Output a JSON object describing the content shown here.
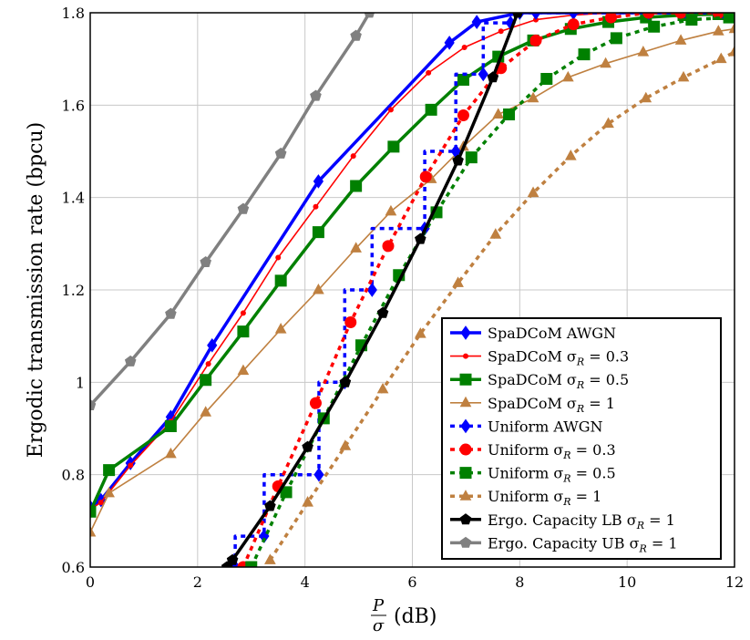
{
  "chart_data": {
    "type": "line",
    "title": "",
    "xlabel": {
      "numerator": "P",
      "denominator": "σ",
      "unit": "(dB)"
    },
    "ylabel": "Ergodic transmission rate (bpcu)",
    "xlim": [
      0,
      12
    ],
    "ylim": [
      0.6,
      1.8
    ],
    "xticks": [
      0,
      2,
      4,
      6,
      8,
      10,
      12
    ],
    "xtick_labels": [
      "0",
      "2",
      "4",
      "6",
      "8",
      "10",
      "12"
    ],
    "yticks": [
      0.6,
      0.8,
      1.0,
      1.2,
      1.4,
      1.6,
      1.8
    ],
    "ytick_labels": [
      "0.6",
      "0.8",
      "1",
      "1.2",
      "1.4",
      "1.6",
      "1.8"
    ],
    "grid": true,
    "legend_position": "bottom-right",
    "series": [
      {
        "name": "SpaDCoM AWGN",
        "prefix": "SpaDCoM AWGN",
        "sub": "",
        "suffix": "",
        "color": "#0000ff",
        "dash": false,
        "width": 3.5,
        "marker": "diamond",
        "x": [
          0,
          0.2,
          0.75,
          1.5,
          2.27,
          4.25,
          6.69,
          7.2,
          8,
          12
        ],
        "y": [
          0.73,
          0.745,
          0.825,
          0.925,
          1.08,
          1.435,
          1.735,
          1.78,
          1.8,
          1.8
        ]
      },
      {
        "name": "SpaDCoM σR = 0.3",
        "prefix": "SpaDCoM σ",
        "sub": "R",
        "suffix": " = 0.3",
        "color": "#ff0000",
        "dash": false,
        "width": 1.6,
        "marker": "dot",
        "x": [
          0,
          0.2,
          0.75,
          1.5,
          2.2,
          2.85,
          3.5,
          4.2,
          4.9,
          5.6,
          6.3,
          6.97,
          7.65,
          8.3,
          9,
          9.7,
          10.4,
          11,
          11.7,
          12
        ],
        "y": [
          0.725,
          0.74,
          0.82,
          0.915,
          1.04,
          1.15,
          1.27,
          1.38,
          1.49,
          1.59,
          1.67,
          1.725,
          1.76,
          1.785,
          1.795,
          1.8,
          1.8,
          1.8,
          1.8,
          1.8
        ]
      },
      {
        "name": "SpaDCoM σR = 0.5",
        "prefix": "SpaDCoM σ",
        "sub": "R",
        "suffix": " = 0.5",
        "color": "#008000",
        "dash": false,
        "width": 3.5,
        "marker": "square",
        "x": [
          0,
          0.35,
          1.5,
          2.15,
          2.85,
          3.55,
          4.25,
          4.95,
          5.65,
          6.35,
          6.95,
          7.6,
          8.25,
          8.95,
          9.65,
          10.35,
          11.05,
          11.7,
          12
        ],
        "y": [
          0.72,
          0.81,
          0.905,
          1.005,
          1.11,
          1.22,
          1.325,
          1.425,
          1.51,
          1.59,
          1.655,
          1.705,
          1.74,
          1.765,
          1.78,
          1.79,
          1.795,
          1.797,
          1.8
        ]
      },
      {
        "name": "SpaDCoM σR = 1",
        "prefix": "SpaDCoM σ",
        "sub": "R",
        "suffix": " = 1",
        "color": "#bf8040",
        "dash": false,
        "width": 1.6,
        "marker": "triangle",
        "x": [
          0,
          0.35,
          1.5,
          2.15,
          2.85,
          3.55,
          4.25,
          4.95,
          5.6,
          6.35,
          6.95,
          7.6,
          8.25,
          8.9,
          9.6,
          10.3,
          11,
          11.7,
          12
        ],
        "y": [
          0.675,
          0.76,
          0.845,
          0.935,
          1.025,
          1.115,
          1.2,
          1.29,
          1.37,
          1.44,
          1.51,
          1.58,
          1.615,
          1.66,
          1.69,
          1.715,
          1.74,
          1.76,
          1.765
        ]
      },
      {
        "name": "Uniform AWGN",
        "prefix": "Uniform AWGN",
        "sub": "",
        "suffix": "",
        "color": "#0000ff",
        "dash": true,
        "width": 3.5,
        "marker": "diamond",
        "x": [
          2.7,
          2.7,
          3.24,
          3.24,
          4.26,
          4.26,
          4.74,
          4.74,
          5.25,
          5.25,
          6.23,
          6.23,
          6.81,
          6.81,
          7.32,
          7.32,
          7.83,
          7.83,
          8.3,
          9,
          9.7,
          10.4,
          11.1,
          11.8,
          12
        ],
        "y": [
          0.6,
          0.667,
          0.667,
          0.8,
          0.8,
          1.0,
          1.0,
          1.2,
          1.2,
          1.333,
          1.333,
          1.5,
          1.5,
          1.667,
          1.667,
          1.778,
          1.778,
          1.8,
          1.8,
          1.8,
          1.8,
          1.8,
          1.8,
          1.8,
          1.8
        ]
      },
      {
        "name": "Uniform σR = 0.3",
        "prefix": "Uniform σ",
        "sub": "R",
        "suffix": " = 0.3",
        "color": "#ff0000",
        "dash": true,
        "width": 3.5,
        "marker": "circle",
        "x": [
          2.85,
          3.5,
          4.2,
          4.85,
          5.55,
          6.25,
          6.95,
          7.65,
          8.3,
          9,
          9.7,
          10.4,
          11,
          11.7
        ],
        "y": [
          0.6,
          0.775,
          0.955,
          1.13,
          1.295,
          1.445,
          1.578,
          1.68,
          1.74,
          1.775,
          1.79,
          1.8,
          1.8,
          1.8
        ]
      },
      {
        "name": "Uniform σR = 0.5",
        "prefix": "Uniform σ",
        "sub": "R",
        "suffix": " = 0.5",
        "color": "#008000",
        "dash": true,
        "width": 3.5,
        "marker": "square",
        "x": [
          3,
          3.65,
          4.35,
          5.05,
          5.75,
          6.45,
          7.1,
          7.8,
          8.5,
          9.2,
          9.8,
          10.5,
          11.2,
          11.9
        ],
        "y": [
          0.6,
          0.762,
          0.922,
          1.08,
          1.232,
          1.368,
          1.487,
          1.58,
          1.657,
          1.71,
          1.745,
          1.77,
          1.785,
          1.79
        ]
      },
      {
        "name": "Uniform σR = 1",
        "prefix": "Uniform σ",
        "sub": "R",
        "suffix": " = 1",
        "color": "#bf8040",
        "dash": true,
        "width": 3.5,
        "marker": "triangle",
        "x": [
          3.35,
          4.05,
          4.75,
          5.45,
          6.15,
          6.85,
          7.55,
          8.25,
          8.95,
          9.65,
          10.35,
          11.05,
          11.75,
          12
        ],
        "y": [
          0.615,
          0.74,
          0.862,
          0.985,
          1.105,
          1.215,
          1.32,
          1.41,
          1.49,
          1.56,
          1.615,
          1.66,
          1.7,
          1.715
        ]
      },
      {
        "name": "Ergo. Capacity LB σR = 1",
        "prefix": "Ergo. Capacity LB σ",
        "sub": "R",
        "suffix": " = 1",
        "color": "#000000",
        "dash": false,
        "width": 3.5,
        "marker": "pentagon",
        "x": [
          2.55,
          2.65,
          3.35,
          4.05,
          4.75,
          5.45,
          6.15,
          6.85,
          7.5,
          7.96
        ],
        "y": [
          0.6,
          0.615,
          0.732,
          0.86,
          1.0,
          1.15,
          1.31,
          1.48,
          1.66,
          1.8
        ]
      },
      {
        "name": "Ergo. Capacity UB σR = 1",
        "prefix": "Ergo. Capacity UB σ",
        "sub": "R",
        "suffix": " = 1",
        "color": "#808080",
        "dash": false,
        "width": 3.5,
        "marker": "pentagon",
        "x": [
          0,
          0.75,
          1.5,
          2.15,
          2.85,
          3.55,
          4.2,
          4.95,
          5.2
        ],
        "y": [
          0.95,
          1.045,
          1.148,
          1.26,
          1.375,
          1.495,
          1.62,
          1.75,
          1.8
        ]
      }
    ]
  }
}
